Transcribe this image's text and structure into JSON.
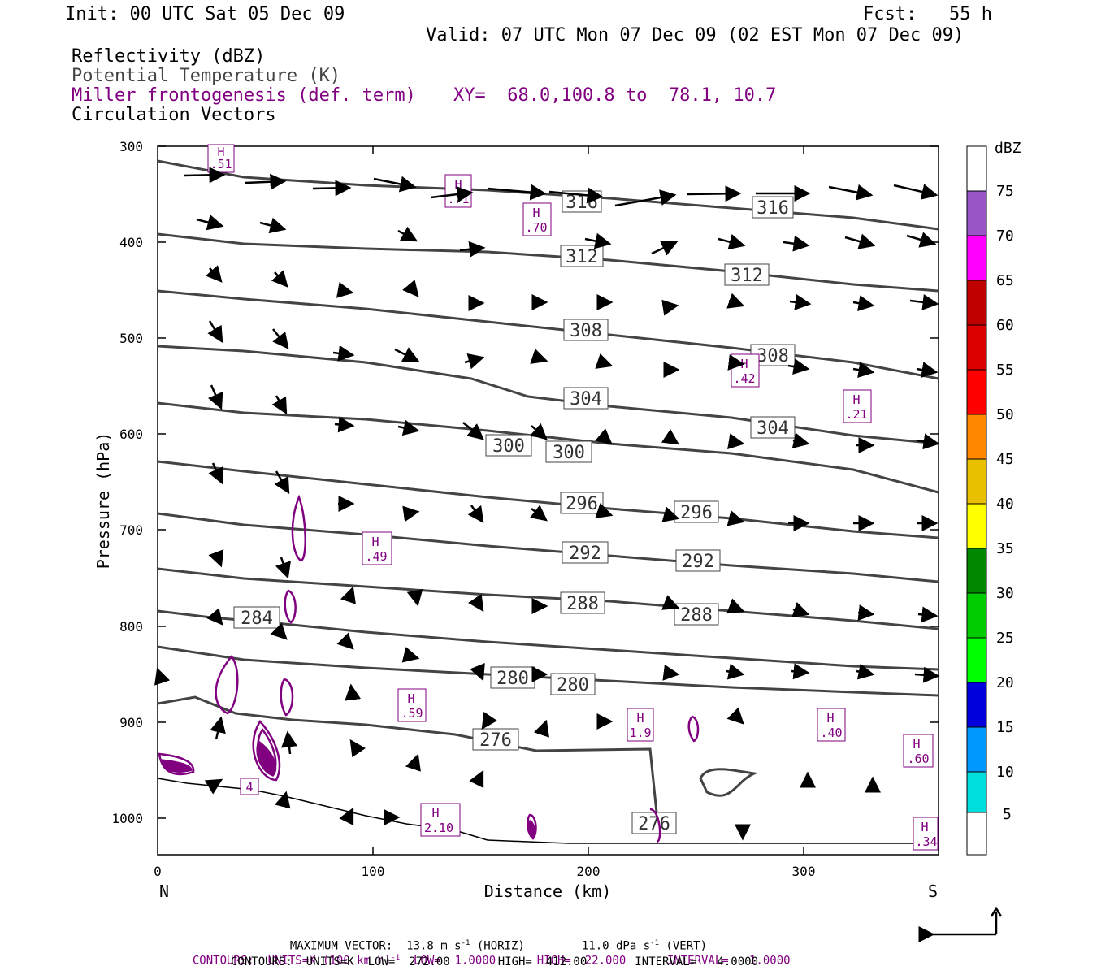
{
  "header": {
    "init": "Init: 00 UTC Sat 05 Dec 09",
    "fcst": "Fcst:   55 h",
    "valid": "Valid: 07 UTC Mon 07 Dec 09 (02 EST Mon 07 Dec 09)"
  },
  "fields": {
    "reflectivity": "Reflectivity (dBZ)",
    "theta": "Potential Temperature (K)",
    "miller": "Miller frontogenesis (def. term)",
    "xy": "XY=  68.0,100.8 to  78.1, 10.7",
    "vectors": "Circulation Vectors"
  },
  "colors": {
    "theta": "#444444",
    "miller": "#800080",
    "vector": "#000000"
  },
  "axes": {
    "ylabel": "Pressure (hPa)",
    "xlabel": "Distance (km)",
    "left_end": "N",
    "right_end": "S",
    "y_ticks": [
      "300",
      "400",
      "500",
      "600",
      "700",
      "800",
      "900",
      "1000"
    ],
    "x_ticks": [
      "0",
      "100",
      "200",
      "300"
    ]
  },
  "colorbar": {
    "title": "dBZ",
    "labels": [
      "75",
      "70",
      "65",
      "60",
      "55",
      "50",
      "45",
      "40",
      "35",
      "30",
      "25",
      "20",
      "15",
      "10",
      "5"
    ],
    "colors": [
      "#ffffff",
      "#9955c8",
      "#ff00ff",
      "#c00000",
      "#dd0000",
      "#ff0000",
      "#ff8800",
      "#e8c000",
      "#ffff00",
      "#008800",
      "#00cc00",
      "#00ff00",
      "#0000dd",
      "#0099ff",
      "#00dddd",
      "#ffffff"
    ]
  },
  "theta_labels": [
    "316",
    "316",
    "312",
    "312",
    "308",
    "308",
    "304",
    "304",
    "300",
    "300",
    "296",
    "296",
    "292",
    "292",
    "288",
    "288",
    "284",
    "280",
    "280",
    "276",
    "276"
  ],
  "miller_labels": [
    {
      "h": "H",
      "v": ".51"
    },
    {
      "h": "H",
      "v": ".71"
    },
    {
      "h": "H",
      "v": ".70"
    },
    {
      "h": "H",
      "v": ".42"
    },
    {
      "h": "H",
      "v": ".21"
    },
    {
      "h": "H",
      "v": ".49"
    },
    {
      "h": "H",
      "v": ".59"
    },
    {
      "h": "H",
      "v": "1.9"
    },
    {
      "h": "H",
      "v": ".40"
    },
    {
      "h": "H",
      "v": ".60"
    },
    {
      "h": "H",
      "v": "2.10"
    },
    {
      "h": "H",
      "v": ".34"
    }
  ],
  "miller_low_value": "4",
  "footer": {
    "max_vector": "MAXIMUM VECTOR:  13.8 m s",
    "max_vector_exp": "-1",
    "max_vector_h": " (HORIZ)",
    "max_vector_v": "11.0 dPa s",
    "max_vector_v_exp": "-1",
    "max_vector_v2": " (VERT)",
    "contours1_a": "CONTOURS:  UNITS=K (100 km h)",
    "contours1_exp": "-1",
    "contours1_b": "  LOW=  1.0000      HIGH=  22.000      INTERVAL=   1.0000",
    "contours2": "CONTOURS:  UNITS=K  LOW=  272.00       HIGH=  412.00       INTERVAL=   4.0000"
  }
}
